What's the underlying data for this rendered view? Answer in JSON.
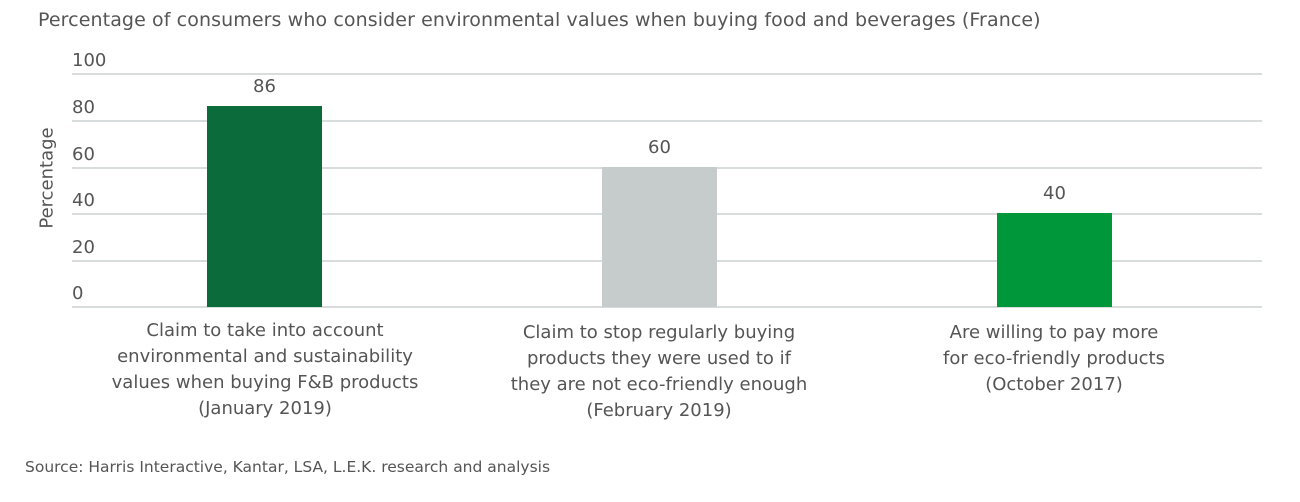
{
  "chart_data": {
    "type": "bar",
    "title": "Percentage of consumers who consider environmental values when buying food and beverages (France)",
    "xlabel": "",
    "ylabel": "Percentage",
    "ylim": [
      0,
      100
    ],
    "yticks": [
      "0",
      "20",
      "40",
      "60",
      "80",
      "100"
    ],
    "grid": true,
    "legend": null,
    "categories": [
      "Claim to take into account environmental and sustainability values when buying F&B products (January 2019)",
      "Claim to stop regularly buying products they were used to if they are not eco-friendly enough (February 2019)",
      "Are willing to pay more for eco-friendly products (October 2017)"
    ],
    "values": [
      86,
      60,
      40
    ],
    "data_labels": [
      "86",
      "60",
      "40"
    ],
    "colors": [
      "#0b6b3a",
      "#c5cccb",
      "#00963a"
    ],
    "source": "Source: Harris Interactive, Kantar, LSA, L.E.K. research and analysis"
  },
  "labels": {
    "cat1": [
      "Claim to take into account",
      "environmental and sustainability",
      "values when buying F&B products",
      "(January 2019)"
    ],
    "cat2": [
      "Claim to stop regularly buying",
      "products they were used to if",
      "they are not eco-friendly enough",
      "(February 2019)"
    ],
    "cat3": [
      "Are willing to pay more",
      "for eco-friendly products",
      "(October 2017)"
    ]
  }
}
